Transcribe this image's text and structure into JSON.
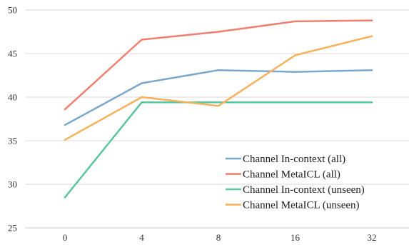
{
  "chart_data": {
    "type": "line",
    "title": "",
    "xlabel": "",
    "ylabel": "",
    "categories": [
      "0",
      "4",
      "8",
      "16",
      "32"
    ],
    "ylim": [
      25,
      50
    ],
    "yticks": [
      25,
      30,
      35,
      40,
      45,
      50
    ],
    "grid": true,
    "legend_position": "bottom-right",
    "series": [
      {
        "name": "Channel In-context (all)",
        "color": "#7ba7cc",
        "values": [
          36.8,
          41.6,
          43.1,
          42.9,
          43.1
        ]
      },
      {
        "name": "Channel MetaICL (all)",
        "color": "#ef7f6e",
        "values": [
          38.6,
          46.6,
          47.5,
          48.7,
          48.8
        ]
      },
      {
        "name": "Channel In-context (unseen)",
        "color": "#5cc5a0",
        "values": [
          28.5,
          39.4,
          39.4,
          39.4,
          39.4
        ]
      },
      {
        "name": "Channel MetaICL (unseen)",
        "color": "#f5b25d",
        "values": [
          35.1,
          40.0,
          39.0,
          44.8,
          47.0
        ]
      }
    ]
  }
}
